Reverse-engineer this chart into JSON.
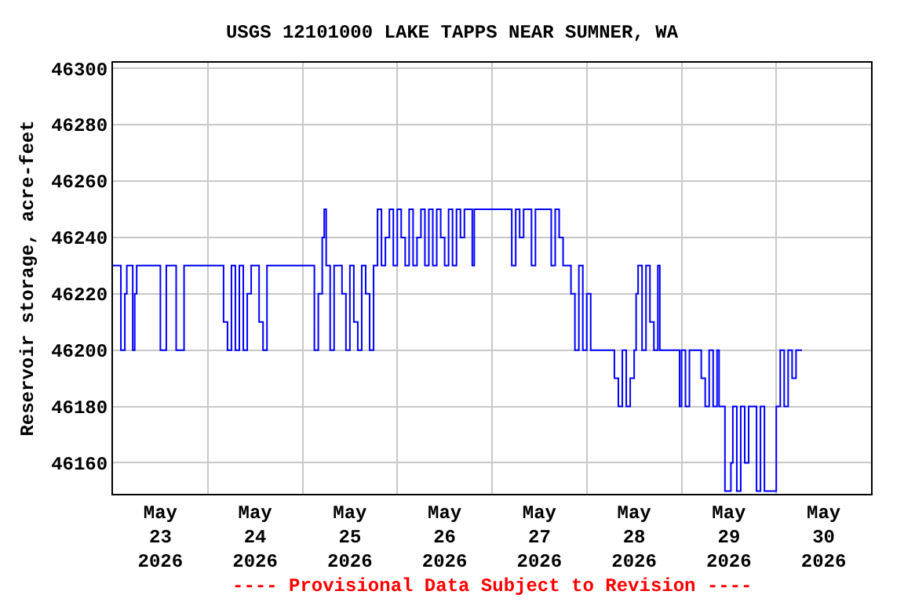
{
  "chart_data": {
    "type": "step",
    "title": "USGS 12101000 LAKE TAPPS NEAR SUMNER, WA",
    "ylabel": "Reservoir storage, acre-feet",
    "annotations": [
      "---- Provisional Data Subject to Revision ----"
    ],
    "x": [
      "2026-05-23T00:00",
      "2026-05-23T02:00",
      "2026-05-23T03:00",
      "2026-05-23T03:30",
      "2026-05-23T05:00",
      "2026-05-23T05:30",
      "2026-05-23T06:00",
      "2026-05-23T12:00",
      "2026-05-23T13:30",
      "2026-05-23T16:00",
      "2026-05-23T18:00",
      "2026-05-24T04:00",
      "2026-05-24T05:00",
      "2026-05-24T06:00",
      "2026-05-24T07:00",
      "2026-05-24T08:00",
      "2026-05-24T09:00",
      "2026-05-24T10:00",
      "2026-05-24T11:00",
      "2026-05-24T13:00",
      "2026-05-24T14:00",
      "2026-05-24T15:00",
      "2026-05-25T03:00",
      "2026-05-25T04:00",
      "2026-05-25T05:00",
      "2026-05-25T05:30",
      "2026-05-25T06:00",
      "2026-05-25T07:00",
      "2026-05-25T08:00",
      "2026-05-25T10:00",
      "2026-05-25T11:00",
      "2026-05-25T12:00",
      "2026-05-25T13:00",
      "2026-05-25T14:00",
      "2026-05-25T15:00",
      "2026-05-25T16:00",
      "2026-05-25T17:00",
      "2026-05-25T18:00",
      "2026-05-25T19:00",
      "2026-05-25T20:00",
      "2026-05-25T21:00",
      "2026-05-25T22:00",
      "2026-05-25T23:00",
      "2026-05-26T00:00",
      "2026-05-26T01:00",
      "2026-05-26T02:00",
      "2026-05-26T03:00",
      "2026-05-26T04:00",
      "2026-05-26T05:00",
      "2026-05-26T06:00",
      "2026-05-26T07:00",
      "2026-05-26T08:00",
      "2026-05-26T09:00",
      "2026-05-26T10:00",
      "2026-05-26T11:00",
      "2026-05-26T12:00",
      "2026-05-26T13:00",
      "2026-05-26T14:00",
      "2026-05-26T15:00",
      "2026-05-26T16:00",
      "2026-05-26T17:00",
      "2026-05-26T19:00",
      "2026-05-26T19:30",
      "2026-05-27T05:00",
      "2026-05-27T06:00",
      "2026-05-27T07:00",
      "2026-05-27T08:00",
      "2026-05-27T10:00",
      "2026-05-27T11:00",
      "2026-05-27T15:00",
      "2026-05-27T16:00",
      "2026-05-27T17:00",
      "2026-05-27T18:00",
      "2026-05-27T20:00",
      "2026-05-27T21:00",
      "2026-05-27T22:00",
      "2026-05-27T23:00",
      "2026-05-28T00:00",
      "2026-05-28T01:00",
      "2026-05-28T07:00",
      "2026-05-28T08:00",
      "2026-05-28T09:00",
      "2026-05-28T10:00",
      "2026-05-28T11:00",
      "2026-05-28T12:00",
      "2026-05-28T12:30",
      "2026-05-28T13:00",
      "2026-05-28T14:00",
      "2026-05-28T15:00",
      "2026-05-28T16:00",
      "2026-05-28T17:00",
      "2026-05-28T18:00",
      "2026-05-28T18:30",
      "2026-05-28T23:30",
      "2026-05-29T00:00",
      "2026-05-29T01:00",
      "2026-05-29T02:00",
      "2026-05-29T05:00",
      "2026-05-29T06:00",
      "2026-05-29T07:00",
      "2026-05-29T08:00",
      "2026-05-29T09:00",
      "2026-05-29T09:30",
      "2026-05-29T11:00",
      "2026-05-29T12:30",
      "2026-05-29T13:00",
      "2026-05-29T14:00",
      "2026-05-29T15:00",
      "2026-05-29T16:00",
      "2026-05-29T17:00",
      "2026-05-29T19:00",
      "2026-05-29T20:00",
      "2026-05-29T21:00",
      "2026-05-30T00:00",
      "2026-05-30T01:00",
      "2026-05-30T02:00",
      "2026-05-30T03:00",
      "2026-05-30T04:00",
      "2026-05-30T05:00",
      "2026-05-30T06:30"
    ],
    "series": [
      {
        "color": "#0000ff",
        "values": [
          46230,
          46200,
          46220,
          46230,
          46200,
          46220,
          46230,
          46200,
          46230,
          46200,
          46230,
          46210,
          46200,
          46230,
          46200,
          46230,
          46200,
          46220,
          46230,
          46210,
          46200,
          46230,
          46200,
          46220,
          46240,
          46250,
          46230,
          46200,
          46230,
          46220,
          46200,
          46230,
          46210,
          46200,
          46230,
          46220,
          46200,
          46230,
          46250,
          46230,
          46240,
          46250,
          46230,
          46250,
          46240,
          46230,
          46250,
          46230,
          46240,
          46250,
          46230,
          46250,
          46230,
          46250,
          46240,
          46230,
          46250,
          46230,
          46250,
          46240,
          46250,
          46230,
          46250,
          46230,
          46250,
          46240,
          46250,
          46230,
          46250,
          46230,
          46250,
          46240,
          46230,
          46220,
          46200,
          46230,
          46200,
          46220,
          46200,
          46190,
          46180,
          46200,
          46180,
          46190,
          46200,
          46220,
          46230,
          46200,
          46230,
          46210,
          46200,
          46230,
          46200,
          46180,
          46200,
          46180,
          46200,
          46190,
          46180,
          46200,
          46180,
          46200,
          46180,
          46150,
          46160,
          46180,
          46150,
          46180,
          46160,
          46180,
          46150,
          46180,
          46150,
          46180,
          46200,
          46180,
          46200,
          46190,
          46200,
          46200
        ]
      }
    ],
    "xlim": [
      "2026-05-23T00:00",
      "2026-05-31T00:00"
    ],
    "xticks": [
      {
        "value": "2026-05-23T12:00",
        "label": "May\n23\n2026"
      },
      {
        "value": "2026-05-24T12:00",
        "label": "May\n24\n2026"
      },
      {
        "value": "2026-05-25T12:00",
        "label": "May\n25\n2026"
      },
      {
        "value": "2026-05-26T12:00",
        "label": "May\n26\n2026"
      },
      {
        "value": "2026-05-27T12:00",
        "label": "May\n27\n2026"
      },
      {
        "value": "2026-05-28T12:00",
        "label": "May\n28\n2026"
      },
      {
        "value": "2026-05-29T12:00",
        "label": "May\n29\n2026"
      },
      {
        "value": "2026-05-30T12:00",
        "label": "May\n30\n2026"
      },
      {
        "value": "2026-05-24T00:00",
        "label": null
      },
      {
        "value": "2026-05-25T00:00",
        "label": null
      },
      {
        "value": "2026-05-26T00:00",
        "label": null
      },
      {
        "value": "2026-05-27T00:00",
        "label": null
      },
      {
        "value": "2026-05-28T00:00",
        "label": null
      },
      {
        "value": "2026-05-29T00:00",
        "label": null
      },
      {
        "value": "2026-05-30T00:00",
        "label": null
      }
    ],
    "ylim": [
      46149,
      46302
    ],
    "yticks": [
      46160,
      46180,
      46200,
      46220,
      46240,
      46260,
      46280,
      46300
    ],
    "grid": true
  }
}
